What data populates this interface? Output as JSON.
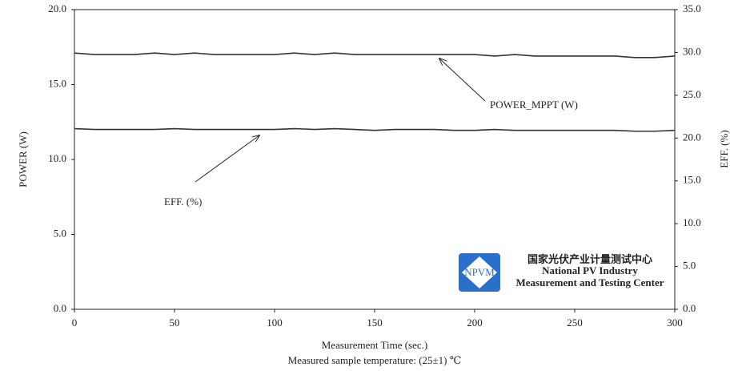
{
  "chart_data": {
    "type": "line",
    "x_label": "Measurement Time (sec.)",
    "note": "Measured sample temperature: (25±1) ℃",
    "y_label": "POWER (W)",
    "y2_label": "EFF. (%)",
    "x": [
      0,
      10,
      20,
      30,
      40,
      50,
      60,
      70,
      80,
      90,
      100,
      110,
      120,
      130,
      140,
      150,
      160,
      170,
      180,
      190,
      200,
      210,
      220,
      230,
      240,
      250,
      260,
      270,
      280,
      290,
      300
    ],
    "series": [
      {
        "name": "POWER_MPPT (W)",
        "color": "#333333",
        "values": [
          17.1,
          17.0,
          17.0,
          17.0,
          17.1,
          17.0,
          17.1,
          17.0,
          17.0,
          17.0,
          17.0,
          17.1,
          17.0,
          17.1,
          17.0,
          17.0,
          17.0,
          17.0,
          17.0,
          17.0,
          17.0,
          16.9,
          17.0,
          16.9,
          16.9,
          16.9,
          16.9,
          16.9,
          16.8,
          16.8,
          16.9
        ]
      },
      {
        "name": "EFF. (%)",
        "color": "#333333",
        "axis": "y2",
        "values": [
          21.1,
          21.0,
          21.0,
          21.0,
          21.0,
          21.1,
          21.0,
          21.0,
          21.0,
          21.0,
          21.0,
          21.1,
          21.0,
          21.1,
          21.0,
          20.9,
          21.0,
          21.0,
          21.0,
          20.9,
          20.9,
          21.0,
          20.9,
          20.9,
          20.9,
          20.9,
          20.9,
          20.9,
          20.8,
          20.8,
          20.9
        ]
      }
    ],
    "xlim": [
      0,
      300
    ],
    "xticks": [
      0,
      50,
      100,
      150,
      200,
      250,
      300
    ],
    "ylim": [
      0,
      20
    ],
    "yticks": [
      {
        "value": 0,
        "label": "0.0"
      },
      {
        "value": 5,
        "label": "5.0"
      },
      {
        "value": 10,
        "label": "10.0"
      },
      {
        "value": 15,
        "label": "15.0"
      },
      {
        "value": 20,
        "label": "20.0"
      }
    ],
    "y2lim": [
      0,
      35
    ],
    "y2ticks": [
      {
        "value": 0,
        "label": "0.0"
      },
      {
        "value": 5,
        "label": "5.0"
      },
      {
        "value": 10,
        "label": "10.0"
      },
      {
        "value": 15,
        "label": "15.0"
      },
      {
        "value": 20,
        "label": "20.0"
      },
      {
        "value": 25,
        "label": "25.0"
      },
      {
        "value": 30,
        "label": "30.0"
      },
      {
        "value": 35,
        "label": "35.0"
      }
    ],
    "grid": false
  },
  "logo": {
    "badge": "NPVM",
    "lines": [
      "国家光伏产业计量测试中心",
      "National PV Industry",
      "Measurement and Testing Center"
    ]
  }
}
